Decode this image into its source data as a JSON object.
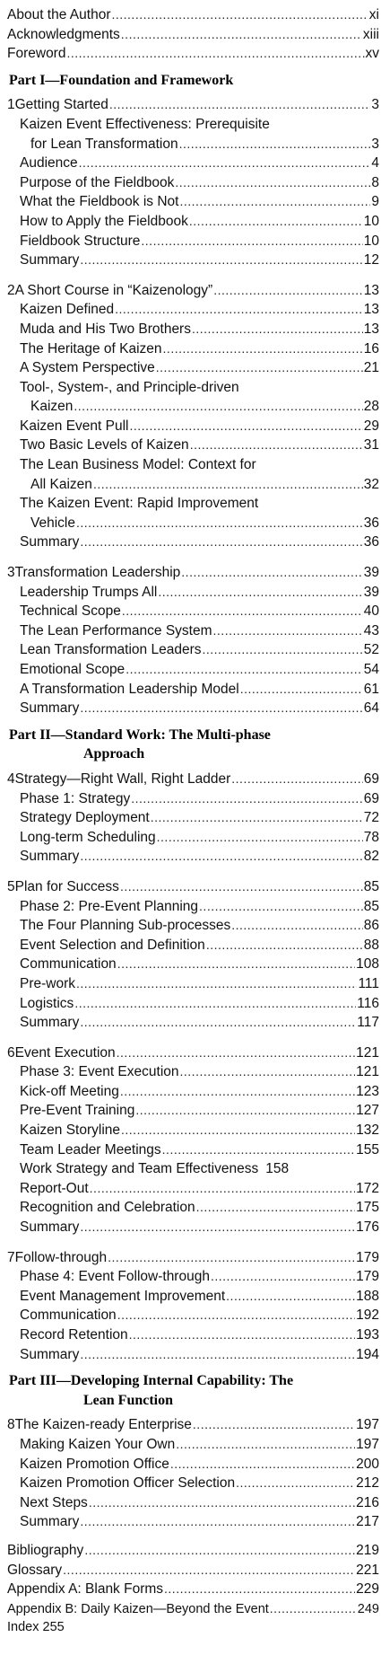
{
  "front_matter": [
    {
      "title": "About the Author",
      "page": "xi"
    },
    {
      "title": "Acknowledgments",
      "page": "xiii"
    },
    {
      "title": "Foreword",
      "page": "xv"
    }
  ],
  "parts": [
    {
      "label": "Part I—Foundation and Framework",
      "label_line2": "",
      "chapters": [
        {
          "num": "1",
          "title": "Getting Started",
          "page": "3",
          "sections": [
            {
              "title": "Kaizen Event Effectiveness:  Prerequisite",
              "page": ""
            },
            {
              "title": "for Lean Transformation",
              "page": "3",
              "wrap": true
            },
            {
              "title": "Audience",
              "page": "4"
            },
            {
              "title": "Purpose of the Fieldbook",
              "page": "8"
            },
            {
              "title": "What the Fieldbook is Not",
              "page": "9"
            },
            {
              "title": "How to Apply the Fieldbook",
              "page": "10"
            },
            {
              "title": "Fieldbook Structure",
              "page": "10"
            },
            {
              "title": "Summary",
              "page": "12"
            }
          ]
        },
        {
          "num": "2",
          "title": "A Short Course in “Kaizenology”",
          "page": "13",
          "sections": [
            {
              "title": "Kaizen Defined",
              "page": "13"
            },
            {
              "title": "Muda and His Two Brothers",
              "page": "13"
            },
            {
              "title": "The Heritage of Kaizen",
              "page": "16"
            },
            {
              "title": "A System Perspective",
              "page": "21"
            },
            {
              "title": "Tool-, System-, and Principle-driven",
              "page": ""
            },
            {
              "title": "Kaizen",
              "page": "28",
              "wrap": true
            },
            {
              "title": "Kaizen Event Pull",
              "page": "29"
            },
            {
              "title": "Two Basic Levels of Kaizen",
              "page": "31"
            },
            {
              "title": "The Lean Business Model: Context for",
              "page": ""
            },
            {
              "title": "All Kaizen",
              "page": "32",
              "wrap": true
            },
            {
              "title": "The Kaizen Event: Rapid Improvement",
              "page": ""
            },
            {
              "title": "Vehicle",
              "page": "36",
              "wrap": true
            },
            {
              "title": "Summary",
              "page": "36"
            }
          ]
        },
        {
          "num": "3",
          "title": "Transformation Leadership",
          "page": "39",
          "sections": [
            {
              "title": "Leadership Trumps All",
              "page": "39"
            },
            {
              "title": "Technical Scope",
              "page": "40"
            },
            {
              "title": "The Lean Performance System",
              "page": "43"
            },
            {
              "title": "Lean Transformation Leaders",
              "page": "52"
            },
            {
              "title": "Emotional Scope",
              "page": "54"
            },
            {
              "title": "A Transformation Leadership Model",
              "page": "61"
            },
            {
              "title": "Summary",
              "page": "64"
            }
          ]
        }
      ]
    },
    {
      "label": "Part II—Standard Work: The Multi-phase",
      "label_line2": "Approach",
      "chapters": [
        {
          "num": "4",
          "title": "Strategy—Right Wall, Right Ladder",
          "page": "69",
          "sections": [
            {
              "title": "Phase 1: Strategy",
              "page": "69"
            },
            {
              "title": "Strategy Deployment",
              "page": "72"
            },
            {
              "title": "Long-term Scheduling",
              "page": "78"
            },
            {
              "title": "Summary",
              "page": "82"
            }
          ]
        },
        {
          "num": "5",
          "title": "Plan for Success",
          "page": "85",
          "sections": [
            {
              "title": "Phase 2: Pre-Event Planning",
              "page": "85"
            },
            {
              "title": "The Four Planning Sub-processes",
              "page": "86"
            },
            {
              "title": "Event Selection and Definition",
              "page": "88"
            },
            {
              "title": "Communication",
              "page": "108"
            },
            {
              "title": "Pre-work",
              "page": "111"
            },
            {
              "title": "Logistics",
              "page": "116"
            },
            {
              "title": "Summary",
              "page": "117"
            }
          ]
        },
        {
          "num": "6",
          "title": "Event Execution",
          "page": "121",
          "sections": [
            {
              "title": "Phase 3: Event Execution",
              "page": "121"
            },
            {
              "title": "Kick-off Meeting",
              "page": "123"
            },
            {
              "title": "Pre-Event Training",
              "page": "127"
            },
            {
              "title": "Kaizen Storyline",
              "page": "132"
            },
            {
              "title": "Team Leader Meetings",
              "page": "155"
            },
            {
              "title": "Work Strategy and Team Effectiveness",
              "page": "158",
              "nodots": true
            },
            {
              "title": "Report-Out",
              "page": "172"
            },
            {
              "title": "Recognition and Celebration",
              "page": "175"
            },
            {
              "title": "Summary",
              "page": "176"
            }
          ]
        },
        {
          "num": "7",
          "title": "Follow-through",
          "page": "179",
          "sections": [
            {
              "title": "Phase 4: Event Follow-through",
              "page": "179"
            },
            {
              "title": "Event Management Improvement",
              "page": "188"
            },
            {
              "title": "Communication",
              "page": "192"
            },
            {
              "title": "Record Retention",
              "page": "193"
            },
            {
              "title": "Summary",
              "page": "194"
            }
          ]
        }
      ]
    },
    {
      "label": "Part III—Developing Internal Capability: The",
      "label_line2": "Lean Function",
      "chapters": [
        {
          "num": "8",
          "title": "The Kaizen-ready Enterprise",
          "page": "197",
          "sections": [
            {
              "title": "Making Kaizen Your Own",
              "page": "197"
            },
            {
              "title": "Kaizen Promotion Office",
              "page": "200"
            },
            {
              "title": "Kaizen Promotion Officer Selection",
              "page": "212"
            },
            {
              "title": "Next Steps",
              "page": "216"
            },
            {
              "title": "Summary",
              "page": "217"
            }
          ]
        }
      ]
    }
  ],
  "back_matter": [
    {
      "title": "Bibliography",
      "page": "219"
    },
    {
      "title": "Glossary",
      "page": "221"
    },
    {
      "title": "Appendix A: Blank Forms",
      "page": "229"
    },
    {
      "title": "Appendix B: Daily Kaizen—Beyond the Event",
      "page": "249"
    },
    {
      "title": "Index   255",
      "page": "",
      "nodots": true
    }
  ]
}
